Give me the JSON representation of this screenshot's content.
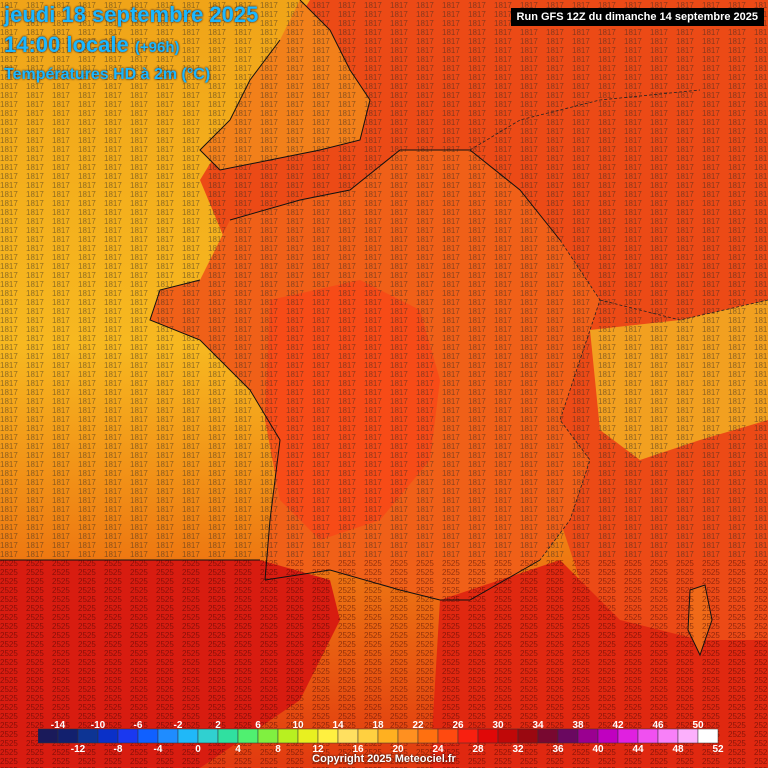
{
  "header": {
    "date_line": "jeudi 18 septembre 2025",
    "time_line": "14:00 locale",
    "time_offset": "(+96h)",
    "variable": "Températures HD à 2m (°C)",
    "run_info": "Run GFS 12Z du dimanche 14 septembre 2025"
  },
  "footer": {
    "copyright": "Copyright 2025 Meteociel.fr"
  },
  "legend": {
    "top_labels": [
      "-14",
      "-10",
      "-6",
      "-2",
      "2",
      "6",
      "10",
      "14",
      "18",
      "22",
      "26",
      "30",
      "34",
      "38",
      "42",
      "46",
      "50"
    ],
    "bottom_labels": [
      "-12",
      "-8",
      "-4",
      "0",
      "4",
      "8",
      "12",
      "16",
      "20",
      "24",
      "28",
      "32",
      "36",
      "40",
      "44",
      "48",
      "52"
    ],
    "colors": [
      "#1a1a5a",
      "#12206e",
      "#0d3494",
      "#0a30c8",
      "#1a38f0",
      "#1060ff",
      "#1f8cff",
      "#20b8f8",
      "#30d0d0",
      "#30e0a0",
      "#50f070",
      "#80f040",
      "#b8f020",
      "#e8f020",
      "#fff040",
      "#ffe060",
      "#ffd040",
      "#ffb020",
      "#ff9020",
      "#ff7010",
      "#ff4a10",
      "#f82010",
      "#e00808",
      "#c00808",
      "#9a0810",
      "#780830",
      "#6a0860",
      "#9a0090",
      "#c000c0",
      "#e020e0",
      "#f050f0",
      "#f880f8",
      "#fcb0fc",
      "#ffffff"
    ]
  }
}
